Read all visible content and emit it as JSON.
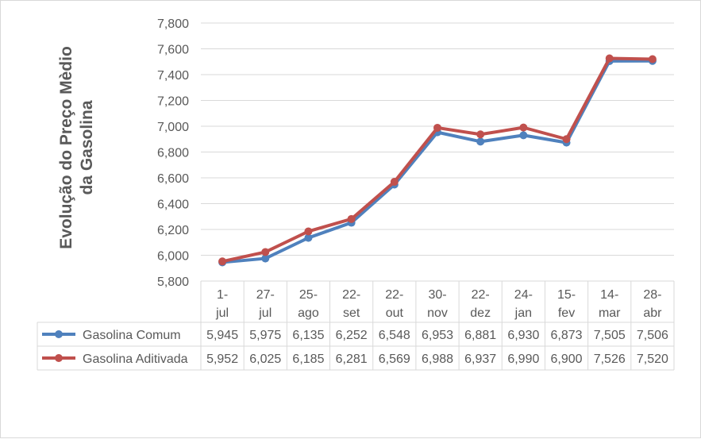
{
  "chart_data": {
    "type": "line",
    "ylabel_lines": [
      "Evolução do Preço Mèdio",
      "da Gasolina"
    ],
    "categories": [
      [
        "1-",
        "jul"
      ],
      [
        "27-",
        "jul"
      ],
      [
        "25-",
        "ago"
      ],
      [
        "22-",
        "set"
      ],
      [
        "22-",
        "out"
      ],
      [
        "30-",
        "nov"
      ],
      [
        "22-",
        "dez"
      ],
      [
        "24-",
        "jan"
      ],
      [
        "15-",
        "fev"
      ],
      [
        "14-",
        "mar"
      ],
      [
        "28-",
        "abr"
      ]
    ],
    "ylim": [
      5800,
      7800
    ],
    "yticks": [
      5800,
      6000,
      6200,
      6400,
      6600,
      6800,
      7000,
      7200,
      7400,
      7600,
      7800
    ],
    "ytick_labels": [
      "5,800",
      "6,000",
      "6,200",
      "6,400",
      "6,600",
      "6,800",
      "7,000",
      "7,200",
      "7,400",
      "7,600",
      "7,800"
    ],
    "grid": true,
    "legend": "data-table",
    "series": [
      {
        "name": "Gasolina Comum",
        "color": "#4f81bd",
        "values": [
          5945,
          5975,
          6135,
          6252,
          6548,
          6953,
          6881,
          6930,
          6873,
          7505,
          7506
        ],
        "labels": [
          "5,945",
          "5,975",
          "6,135",
          "6,252",
          "6,548",
          "6,953",
          "6,881",
          "6,930",
          "6,873",
          "7,505",
          "7,506"
        ]
      },
      {
        "name": "Gasolina Aditivada",
        "color": "#c0504d",
        "values": [
          5952,
          6025,
          6185,
          6281,
          6569,
          6988,
          6937,
          6990,
          6900,
          7526,
          7520
        ],
        "labels": [
          "5,952",
          "6,025",
          "6,185",
          "6,281",
          "6,569",
          "6,988",
          "6,937",
          "6,990",
          "6,900",
          "7,526",
          "7,520"
        ]
      }
    ]
  }
}
